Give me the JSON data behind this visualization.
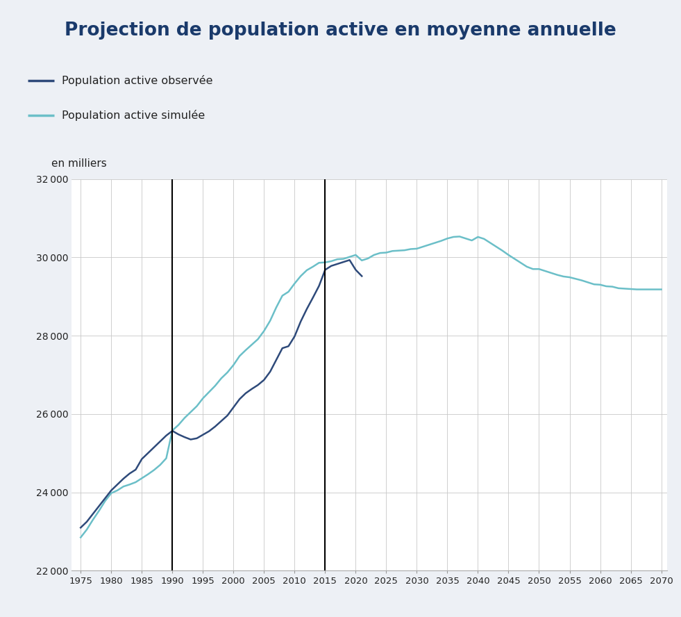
{
  "title": "Projection de population active en moyenne annuelle",
  "ylabel": "en milliers",
  "title_color": "#1a3a6b",
  "title_bg_color": "#dde3ed",
  "plot_bg_color": "#ffffff",
  "outer_bg_color": "#edf0f5",
  "line1_color": "#2e4a7a",
  "line2_color": "#6bbfc8",
  "vline_color": "#000000",
  "grid_color": "#c8c8c8",
  "tick_label_color": "#222222",
  "ylim": [
    22000,
    32000
  ],
  "yticks": [
    22000,
    24000,
    26000,
    28000,
    30000,
    32000
  ],
  "xticks": [
    1975,
    1980,
    1985,
    1990,
    1995,
    2000,
    2005,
    2010,
    2015,
    2020,
    2025,
    2030,
    2035,
    2040,
    2045,
    2050,
    2055,
    2060,
    2065,
    2070
  ],
  "vlines": [
    1990,
    2015
  ],
  "legend_labels": [
    "Population active observée",
    "Population active simulée"
  ],
  "observed_years": [
    1975,
    1976,
    1977,
    1978,
    1979,
    1980,
    1981,
    1982,
    1983,
    1984,
    1985,
    1986,
    1987,
    1988,
    1989,
    1990,
    1991,
    1992,
    1993,
    1994,
    1995,
    1996,
    1997,
    1998,
    1999,
    2000,
    2001,
    2002,
    2003,
    2004,
    2005,
    2006,
    2007,
    2008,
    2009,
    2010,
    2011,
    2012,
    2013,
    2014,
    2015,
    2016,
    2017,
    2018,
    2019,
    2020,
    2021
  ],
  "observed_values": [
    23100,
    23250,
    23450,
    23650,
    23850,
    24050,
    24200,
    24350,
    24480,
    24580,
    24850,
    25000,
    25150,
    25300,
    25450,
    25570,
    25480,
    25410,
    25350,
    25380,
    25470,
    25560,
    25680,
    25820,
    25960,
    26170,
    26380,
    26530,
    26640,
    26740,
    26870,
    27080,
    27380,
    27680,
    27730,
    27980,
    28360,
    28680,
    28970,
    29270,
    29680,
    29780,
    29830,
    29880,
    29930,
    29680,
    29520
  ],
  "simulated_years": [
    1975,
    1976,
    1977,
    1978,
    1979,
    1980,
    1981,
    1982,
    1983,
    1984,
    1985,
    1986,
    1987,
    1988,
    1989,
    1990,
    1991,
    1992,
    1993,
    1994,
    1995,
    1996,
    1997,
    1998,
    1999,
    2000,
    2001,
    2002,
    2003,
    2004,
    2005,
    2006,
    2007,
    2008,
    2009,
    2010,
    2011,
    2012,
    2013,
    2014,
    2015,
    2016,
    2017,
    2018,
    2019,
    2020,
    2021,
    2022,
    2023,
    2024,
    2025,
    2026,
    2027,
    2028,
    2029,
    2030,
    2031,
    2032,
    2033,
    2034,
    2035,
    2036,
    2037,
    2038,
    2039,
    2040,
    2041,
    2042,
    2043,
    2044,
    2045,
    2046,
    2047,
    2048,
    2049,
    2050,
    2051,
    2052,
    2053,
    2054,
    2055,
    2056,
    2057,
    2058,
    2059,
    2060,
    2061,
    2062,
    2063,
    2064,
    2065,
    2066,
    2067,
    2068,
    2069,
    2070
  ],
  "simulated_values": [
    22850,
    23050,
    23300,
    23530,
    23780,
    23980,
    24050,
    24150,
    24200,
    24260,
    24360,
    24460,
    24570,
    24700,
    24870,
    25580,
    25720,
    25900,
    26050,
    26200,
    26400,
    26560,
    26720,
    26910,
    27060,
    27250,
    27480,
    27630,
    27770,
    27910,
    28120,
    28380,
    28720,
    29020,
    29120,
    29330,
    29520,
    29670,
    29760,
    29860,
    29870,
    29900,
    29950,
    29960,
    30010,
    30060,
    29920,
    29970,
    30060,
    30110,
    30120,
    30160,
    30170,
    30180,
    30210,
    30220,
    30270,
    30320,
    30370,
    30420,
    30480,
    30520,
    30530,
    30480,
    30430,
    30520,
    30470,
    30370,
    30270,
    30170,
    30060,
    29960,
    29860,
    29760,
    29700,
    29700,
    29650,
    29600,
    29550,
    29510,
    29490,
    29450,
    29410,
    29360,
    29310,
    29300,
    29260,
    29250,
    29210,
    29200,
    29190,
    29180,
    29180,
    29180,
    29180,
    29180
  ]
}
